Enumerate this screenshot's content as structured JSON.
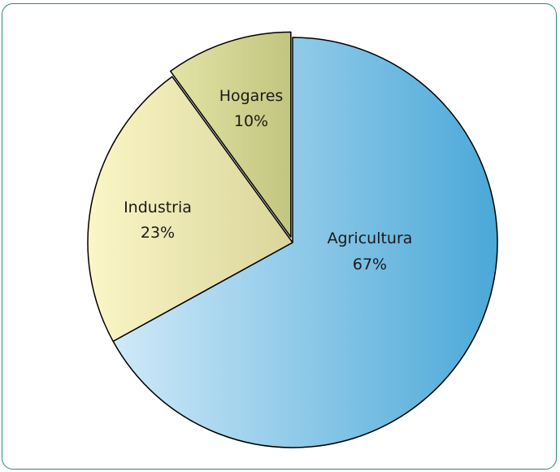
{
  "chart_data": {
    "type": "pie",
    "slices": [
      {
        "label": "Agricultura",
        "value": 67,
        "value_label": "67%",
        "color_start": "#d0e9f8",
        "color_end": "#4aa8d8"
      },
      {
        "label": "Industria",
        "value": 23,
        "value_label": "23%",
        "color_start": "#fbf6c6",
        "color_end": "#d9d59a"
      },
      {
        "label": "Hogares",
        "value": 10,
        "value_label": "10%",
        "color_start": "#e2e4a6",
        "color_end": "#c2c57e"
      }
    ],
    "exploded_slice": "Hogares",
    "title": "",
    "legend": "none"
  },
  "colors": {
    "frame_border": "#2a8a78",
    "slice_border": "#000000"
  }
}
